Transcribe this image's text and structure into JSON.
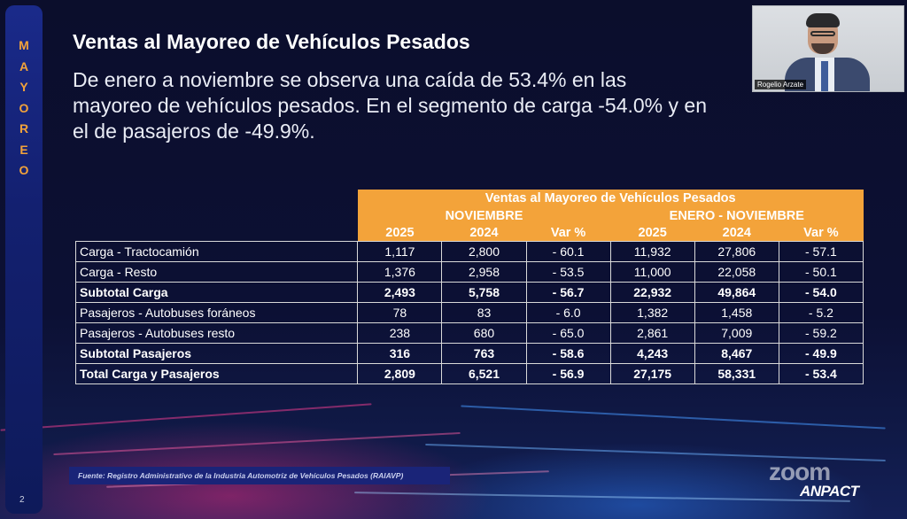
{
  "sidebar": {
    "letters": [
      "M",
      "A",
      "Y",
      "O",
      "R",
      "E",
      "O"
    ]
  },
  "slide": {
    "title": "Ventas al Mayoreo de Vehículos Pesados",
    "subtitle_lines": [
      "De enero a noviembre se observa una caída de 53.4% en las",
      "mayoreo de vehículos pesados. En el segmento de carga -54.0% y en",
      "el de pasajeros de -49.9%."
    ]
  },
  "video": {
    "participant_name": "Rogelio Arzate"
  },
  "table": {
    "title": "Ventas al Mayoreo de Vehículos Pesados",
    "period_headers": [
      "NOVIEMBRE",
      "ENERO - NOVIEMBRE"
    ],
    "column_headers": [
      "2025",
      "2024",
      "Var %",
      "2025",
      "2024",
      "Var %"
    ],
    "rows": [
      {
        "label": "Carga - Tractocamión",
        "values": [
          "1,117",
          "2,800",
          "- 60.1",
          "11,932",
          "27,806",
          "- 57.1"
        ],
        "bold": false
      },
      {
        "label": "Carga - Resto",
        "values": [
          "1,376",
          "2,958",
          "- 53.5",
          "11,000",
          "22,058",
          "- 50.1"
        ],
        "bold": false
      },
      {
        "label": "Subtotal Carga",
        "values": [
          "2,493",
          "5,758",
          "- 56.7",
          "22,932",
          "49,864",
          "- 54.0"
        ],
        "bold": true
      },
      {
        "label": "Pasajeros - Autobuses foráneos",
        "values": [
          "78",
          "83",
          "- 6.0",
          "1,382",
          "1,458",
          "- 5.2"
        ],
        "bold": false
      },
      {
        "label": "Pasajeros - Autobuses resto",
        "values": [
          "238",
          "680",
          "- 65.0",
          "2,861",
          "7,009",
          "- 59.2"
        ],
        "bold": false
      },
      {
        "label": "Subtotal Pasajeros",
        "values": [
          "316",
          "763",
          "- 58.6",
          "4,243",
          "8,467",
          "- 49.9"
        ],
        "bold": true
      },
      {
        "label": "Total Carga y Pasajeros",
        "values": [
          "2,809",
          "6,521",
          "- 56.9",
          "27,175",
          "58,331",
          "- 53.4"
        ],
        "bold": true
      }
    ]
  },
  "footer": {
    "source": "Fuente: Registro Administrativo de la Industria Automotriz de Vehículos Pesados (RAIAVP)",
    "page_number": "2",
    "watermark": "zoom",
    "logo_text": "ANPACT"
  },
  "colors": {
    "accent_orange": "#f3a33a",
    "background": "#0a0d2a",
    "sidebar_blue": "#1a2a8a"
  }
}
